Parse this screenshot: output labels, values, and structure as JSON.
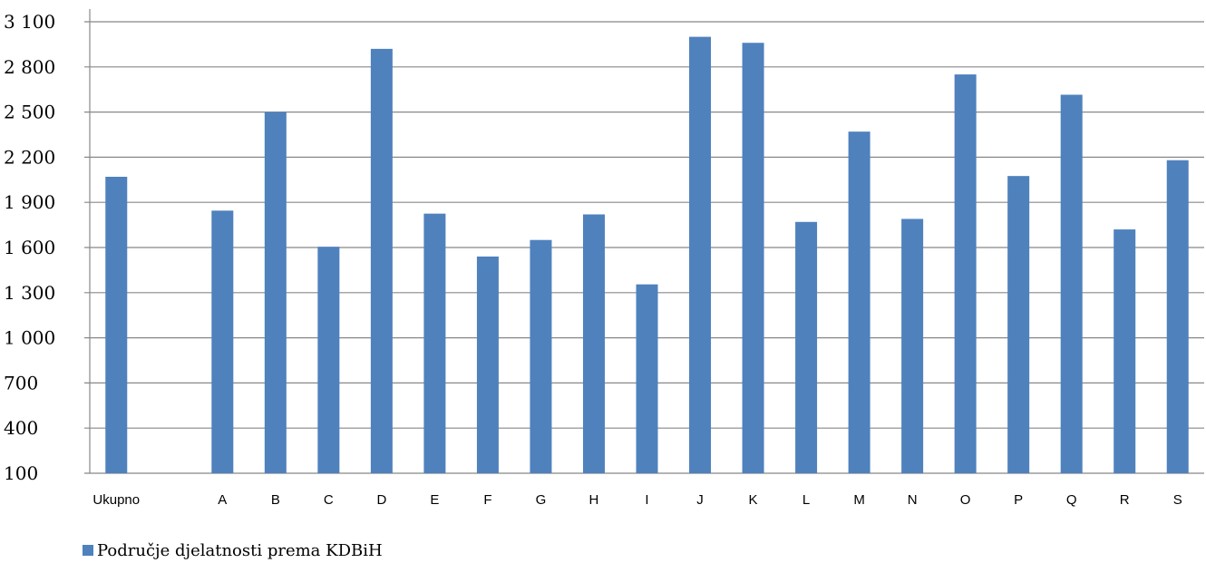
{
  "chart_data": {
    "type": "bar",
    "categories": [
      "Ukupno",
      "",
      "A",
      "B",
      "C",
      "D",
      "E",
      "F",
      "G",
      "H",
      "I",
      "J",
      "K",
      "L",
      "M",
      "N",
      "O",
      "P",
      "Q",
      "R",
      "S"
    ],
    "values": [
      2070,
      null,
      1845,
      2500,
      1605,
      2920,
      1825,
      1540,
      1650,
      1820,
      1355,
      3000,
      2960,
      1770,
      2370,
      1790,
      2750,
      2075,
      2615,
      1720,
      2180
    ],
    "yticks": [
      100,
      400,
      700,
      1000,
      1300,
      1600,
      1900,
      2200,
      2500,
      2800,
      3100
    ],
    "ytick_labels": [
      "100",
      "400",
      "700",
      "1 000",
      "1 300",
      "1 600",
      "1 900",
      "2 200",
      "2 500",
      "2 800",
      "3 100"
    ],
    "ylim": [
      100,
      3100
    ],
    "grid": true,
    "legend": {
      "position": "bottom-left",
      "label": "Područje djelatnosti prema KDBiH"
    },
    "colors": {
      "bar": "#4f81bd",
      "grid": "#888888",
      "axis": "#888888"
    }
  }
}
